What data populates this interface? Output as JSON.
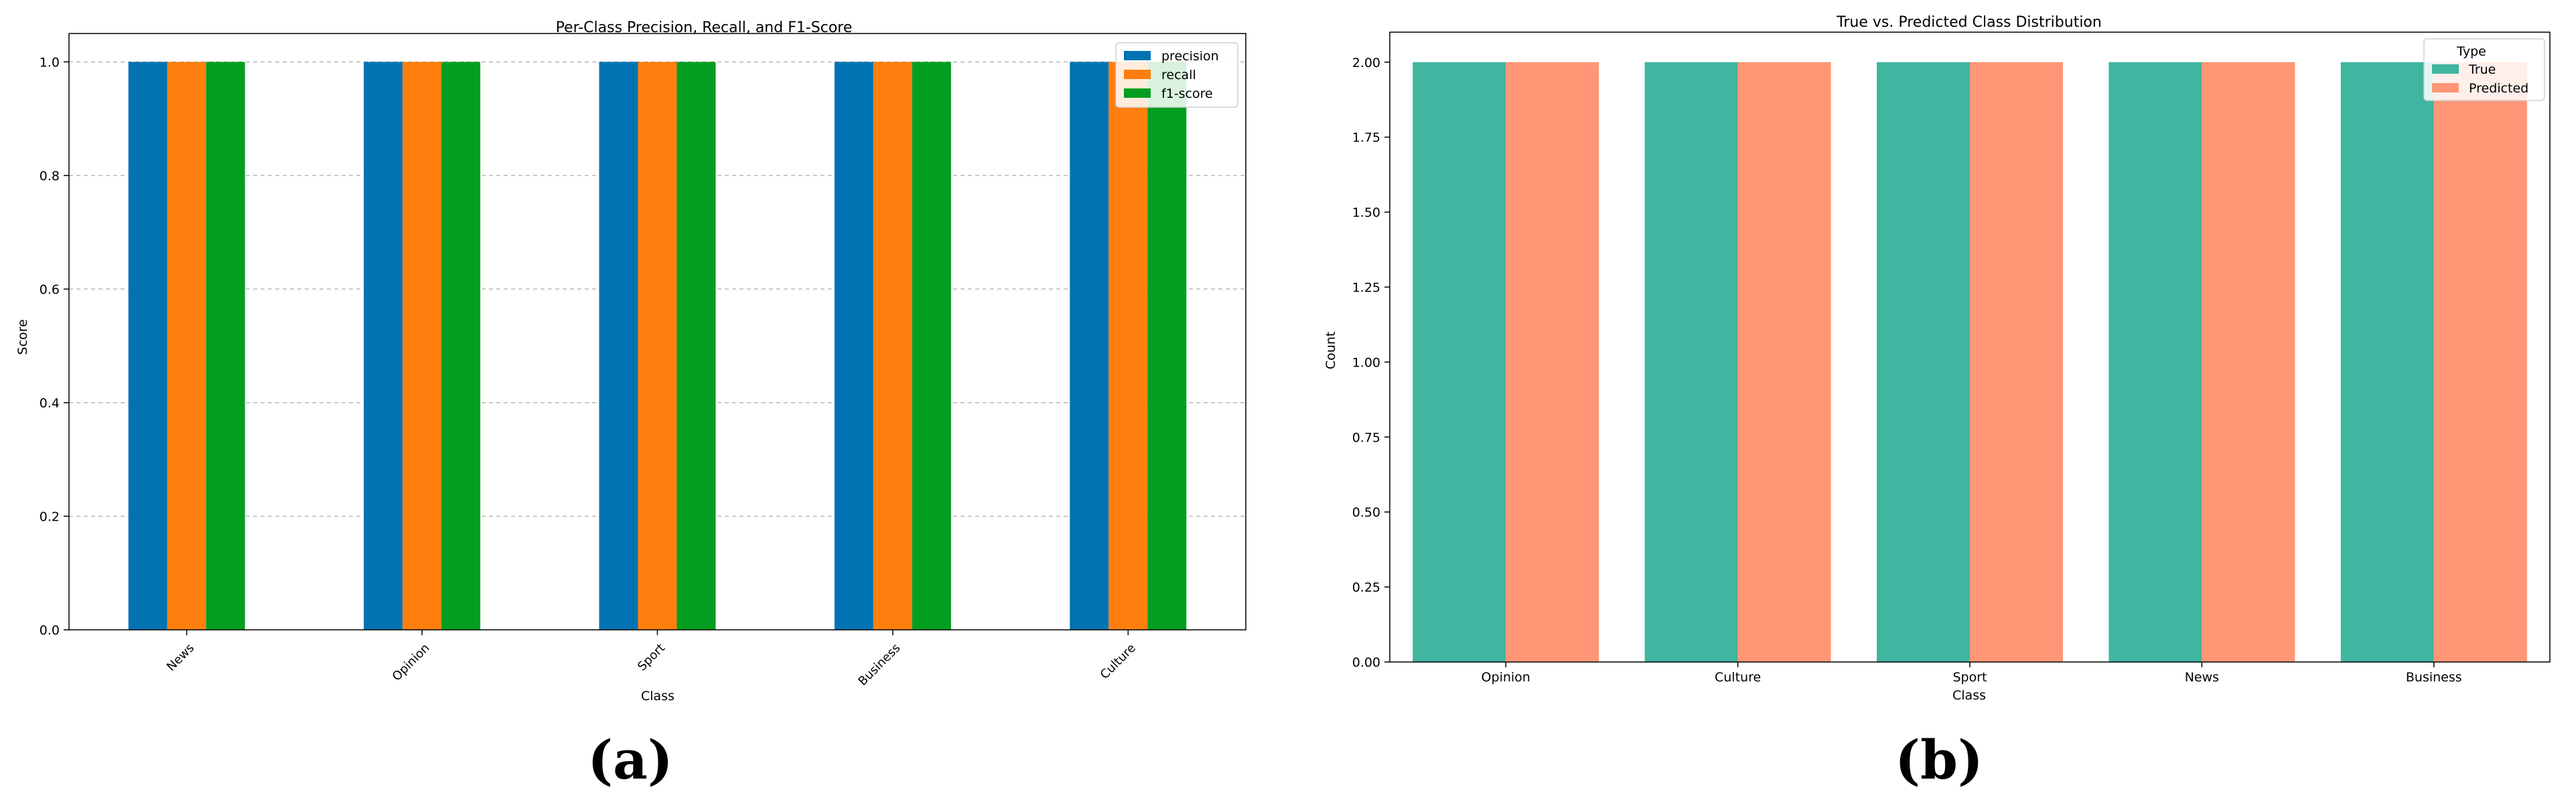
{
  "panels": {
    "a": {
      "label": "(a)"
    },
    "b": {
      "label": "(b)"
    }
  },
  "chart_data": [
    {
      "type": "bar",
      "title": "Per-Class Precision, Recall, and F1-Score",
      "xlabel": "Class",
      "ylabel": "Score",
      "categories": [
        "News",
        "Opinion",
        "Sport",
        "Business",
        "Culture"
      ],
      "series": [
        {
          "name": "precision",
          "color": "#0173b2",
          "values": [
            1.0,
            1.0,
            1.0,
            1.0,
            1.0
          ]
        },
        {
          "name": "recall",
          "color": "#ff7f0e",
          "values": [
            1.0,
            1.0,
            1.0,
            1.0,
            1.0
          ]
        },
        {
          "name": "f1-score",
          "color": "#029e20",
          "values": [
            1.0,
            1.0,
            1.0,
            1.0,
            1.0
          ]
        }
      ],
      "ylim": [
        0,
        1.05
      ],
      "yticks": [
        "0.0",
        "0.2",
        "0.4",
        "0.6",
        "0.8",
        "1.0"
      ],
      "grid": "y-dashed",
      "legend": "top-right",
      "xtick_rotation": 45
    },
    {
      "type": "bar",
      "title": "True vs. Predicted Class Distribution",
      "xlabel": "Class",
      "ylabel": "Count",
      "legend_title": "Type",
      "categories": [
        "Opinion",
        "Culture",
        "Sport",
        "News",
        "Business"
      ],
      "series": [
        {
          "name": "True",
          "color": "#40b5a0",
          "values": [
            2,
            2,
            2,
            2,
            2
          ]
        },
        {
          "name": "Predicted",
          "color": "#ff9676",
          "values": [
            2,
            2,
            2,
            2,
            2
          ]
        }
      ],
      "ylim": [
        0,
        2.1
      ],
      "yticks": [
        "0.00",
        "0.25",
        "0.50",
        "0.75",
        "1.00",
        "1.25",
        "1.50",
        "1.75",
        "2.00"
      ],
      "grid": "off",
      "legend": "top-right"
    }
  ]
}
